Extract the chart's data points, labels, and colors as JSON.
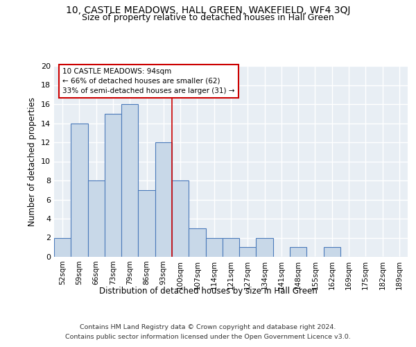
{
  "title": "10, CASTLE MEADOWS, HALL GREEN, WAKEFIELD, WF4 3QJ",
  "subtitle": "Size of property relative to detached houses in Hall Green",
  "xlabel": "Distribution of detached houses by size in Hall Green",
  "ylabel": "Number of detached properties",
  "bar_labels": [
    "52sqm",
    "59sqm",
    "66sqm",
    "73sqm",
    "79sqm",
    "86sqm",
    "93sqm",
    "100sqm",
    "107sqm",
    "114sqm",
    "121sqm",
    "127sqm",
    "134sqm",
    "141sqm",
    "148sqm",
    "155sqm",
    "162sqm",
    "169sqm",
    "175sqm",
    "182sqm",
    "189sqm"
  ],
  "bar_values": [
    2,
    14,
    8,
    15,
    16,
    7,
    12,
    8,
    3,
    2,
    2,
    1,
    2,
    0,
    1,
    0,
    1,
    0,
    0,
    0,
    0
  ],
  "bar_color": "#c8d8e8",
  "bar_edge_color": "#4a7aba",
  "background_color": "#e8eef4",
  "grid_color": "#ffffff",
  "vline_x_index": 6.5,
  "vline_color": "#cc0000",
  "annotation_title": "10 CASTLE MEADOWS: 94sqm",
  "annotation_line1": "← 66% of detached houses are smaller (62)",
  "annotation_line2": "33% of semi-detached houses are larger (31) →",
  "annotation_box_color": "#ffffff",
  "annotation_box_edge": "#cc0000",
  "ylim": [
    0,
    20
  ],
  "yticks": [
    0,
    2,
    4,
    6,
    8,
    10,
    12,
    14,
    16,
    18,
    20
  ],
  "footer_line1": "Contains HM Land Registry data © Crown copyright and database right 2024.",
  "footer_line2": "Contains public sector information licensed under the Open Government Licence v3.0."
}
